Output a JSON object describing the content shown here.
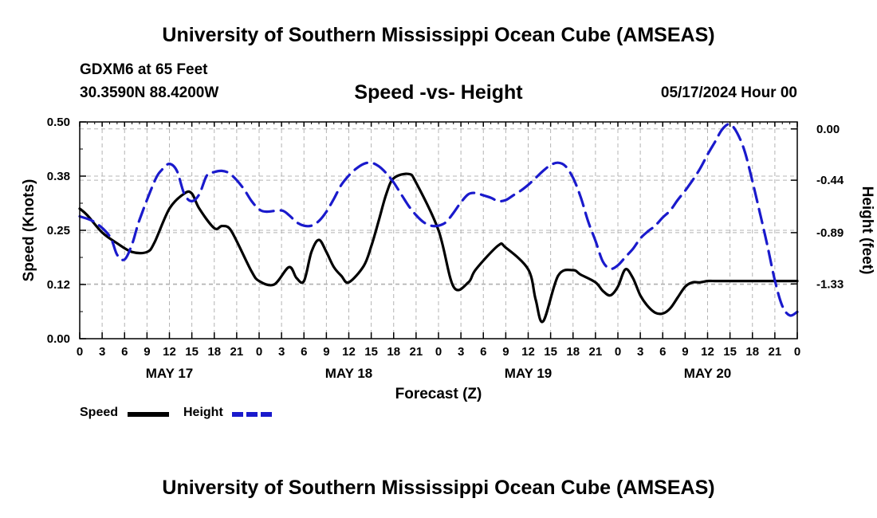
{
  "header": {
    "title": "University of Southern Mississippi Ocean Cube (AMSEAS)",
    "station": "GDXM6 at 65 Feet",
    "coordinates": "30.3590N  88.4200W",
    "chart_title": "Speed -vs- Height",
    "date": "05/17/2024 Hour 00"
  },
  "footer": {
    "title": "University of Southern Mississippi Ocean Cube (AMSEAS)"
  },
  "legend": {
    "speed_label": "Speed",
    "height_label": "Height"
  },
  "colors": {
    "speed": "#000000",
    "height": "#1a1acc",
    "grid": "#b4b4b4"
  },
  "chart_data": {
    "type": "line",
    "title": "Speed -vs- Height",
    "xlabel": "Forecast (Z)",
    "ylabel": "Speed (Knots)",
    "y2label": "Height (feet)",
    "x_range": [
      0,
      96
    ],
    "x_ticks": [
      0,
      3,
      6,
      9,
      12,
      15,
      18,
      21,
      24,
      27,
      30,
      33,
      36,
      39,
      42,
      45,
      48,
      51,
      54,
      57,
      60,
      63,
      66,
      69,
      72,
      75,
      78,
      81,
      84,
      87,
      90,
      93,
      96
    ],
    "x_tick_labels": [
      "0",
      "3",
      "6",
      "9",
      "12",
      "15",
      "18",
      "21",
      "0",
      "3",
      "6",
      "9",
      "12",
      "15",
      "18",
      "21",
      "0",
      "3",
      "6",
      "9",
      "12",
      "15",
      "18",
      "21",
      "0",
      "3",
      "6",
      "9",
      "12",
      "15",
      "18",
      "21",
      "0"
    ],
    "day_labels": [
      {
        "x": 12,
        "label": "MAY 17"
      },
      {
        "x": 36,
        "label": "MAY 18"
      },
      {
        "x": 60,
        "label": "MAY 19"
      },
      {
        "x": 84,
        "label": "MAY 20"
      }
    ],
    "ylim": [
      0,
      0.5
    ],
    "y_ticks": [
      0.0,
      0.125,
      0.25,
      0.375,
      0.5
    ],
    "y_tick_labels": [
      "0.00",
      "0.12",
      "0.25",
      "0.38",
      "0.50"
    ],
    "y2lim": [
      -1.8,
      0.06
    ],
    "y2_ticks": [
      0.0,
      -0.44,
      -0.89,
      -1.33
    ],
    "y2_tick_labels": [
      "0.00",
      "-0.44",
      "-0.89",
      "-1.33"
    ],
    "grid": true,
    "series": [
      {
        "name": "Speed",
        "axis": "left",
        "style": "solid",
        "x": [
          0,
          1,
          3,
          5,
          7,
          9,
          10,
          12,
          14,
          15,
          16,
          18,
          19,
          20,
          21,
          23,
          24,
          26,
          28,
          29,
          30,
          31,
          32,
          33,
          34,
          35,
          36,
          38,
          39,
          40,
          41,
          42,
          44,
          45,
          48,
          50,
          52,
          53,
          56,
          57,
          60,
          61,
          62,
          64,
          66,
          67,
          69,
          70,
          71,
          72,
          73,
          74,
          75,
          76,
          77,
          78,
          79,
          80,
          81,
          82,
          83,
          84,
          85,
          86,
          87,
          88,
          89,
          90,
          91,
          92,
          93,
          94,
          95,
          96
        ],
        "values": [
          0.3,
          0.285,
          0.245,
          0.22,
          0.2,
          0.2,
          0.222,
          0.3,
          0.335,
          0.335,
          0.3,
          0.255,
          0.26,
          0.255,
          0.225,
          0.155,
          0.133,
          0.125,
          0.165,
          0.14,
          0.133,
          0.2,
          0.228,
          0.2,
          0.165,
          0.145,
          0.13,
          0.168,
          0.213,
          0.272,
          0.333,
          0.37,
          0.38,
          0.36,
          0.25,
          0.12,
          0.13,
          0.16,
          0.215,
          0.21,
          0.16,
          0.09,
          0.04,
          0.145,
          0.158,
          0.148,
          0.13,
          0.11,
          0.1,
          0.12,
          0.16,
          0.14,
          0.1,
          0.075,
          0.06,
          0.058,
          0.07,
          0.095,
          0.12,
          0.13,
          0.13,
          0.133,
          0.133,
          0.133,
          0.133,
          0.133,
          0.133,
          0.133,
          0.133,
          0.133,
          0.133,
          0.133,
          0.133,
          0.133
        ]
      },
      {
        "name": "Height",
        "axis": "right",
        "style": "dashed",
        "x": [
          0,
          2,
          4,
          5,
          6,
          7,
          8,
          10,
          11,
          12,
          13,
          14,
          15,
          16,
          17,
          18,
          19,
          20,
          21,
          22,
          23,
          24,
          25,
          27,
          28,
          29,
          30,
          31,
          32,
          33,
          34,
          35,
          36,
          37,
          38,
          39,
          40,
          41,
          42,
          43,
          44,
          45,
          46,
          47,
          48,
          49,
          50,
          51,
          52,
          53,
          54,
          55,
          56,
          57,
          58,
          59,
          60,
          61,
          62,
          63,
          64,
          65,
          66,
          67,
          68,
          69,
          70,
          71,
          72,
          73,
          74,
          75,
          76,
          77,
          78,
          79,
          80,
          81,
          82,
          83,
          84,
          85,
          86,
          87,
          88,
          89,
          90,
          91,
          92,
          93,
          94,
          95,
          96
        ],
        "values": [
          -0.75,
          -0.8,
          -0.92,
          -1.08,
          -1.12,
          -0.99,
          -0.78,
          -0.45,
          -0.35,
          -0.3,
          -0.36,
          -0.56,
          -0.62,
          -0.56,
          -0.4,
          -0.37,
          -0.36,
          -0.38,
          -0.44,
          -0.52,
          -0.62,
          -0.69,
          -0.71,
          -0.7,
          -0.74,
          -0.8,
          -0.83,
          -0.83,
          -0.79,
          -0.71,
          -0.6,
          -0.48,
          -0.4,
          -0.34,
          -0.3,
          -0.29,
          -0.32,
          -0.38,
          -0.46,
          -0.56,
          -0.66,
          -0.74,
          -0.8,
          -0.83,
          -0.83,
          -0.8,
          -0.72,
          -0.63,
          -0.56,
          -0.55,
          -0.57,
          -0.59,
          -0.62,
          -0.61,
          -0.57,
          -0.53,
          -0.48,
          -0.42,
          -0.36,
          -0.31,
          -0.29,
          -0.32,
          -0.42,
          -0.58,
          -0.79,
          -0.96,
          -1.14,
          -1.2,
          -1.17,
          -1.1,
          -1.03,
          -0.94,
          -0.88,
          -0.83,
          -0.76,
          -0.7,
          -0.61,
          -0.53,
          -0.44,
          -0.34,
          -0.22,
          -0.11,
          0.0,
          0.04,
          -0.04,
          -0.2,
          -0.45,
          -0.72,
          -1.0,
          -1.3,
          -1.52,
          -1.6,
          -1.57
        ]
      }
    ]
  }
}
